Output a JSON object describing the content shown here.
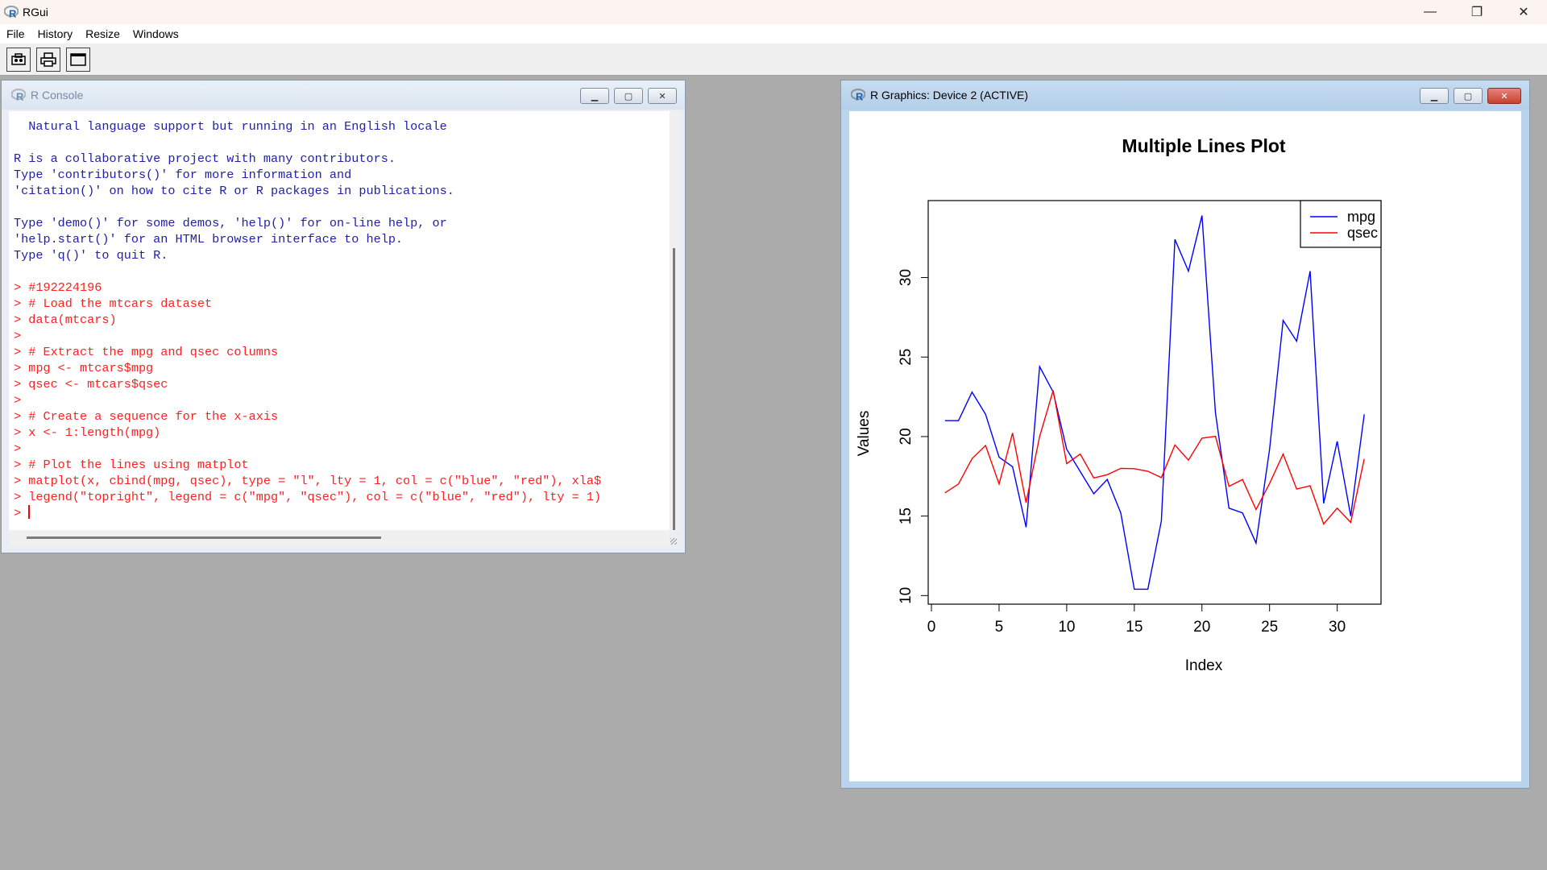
{
  "app": {
    "title": "RGui",
    "controls": {
      "minimize": "—",
      "restore": "❐",
      "close": "✕"
    }
  },
  "menu": {
    "items": [
      "File",
      "History",
      "Resize",
      "Windows"
    ]
  },
  "toolbar": {
    "buttons": [
      {
        "icon": "copy-icon"
      },
      {
        "icon": "print-icon"
      },
      {
        "icon": "window-icon"
      }
    ]
  },
  "console": {
    "title": "R Console",
    "lines": [
      {
        "type": "out",
        "text": "  Natural language support but running in an English locale"
      },
      {
        "type": "out",
        "text": ""
      },
      {
        "type": "out",
        "text": "R is a collaborative project with many contributors."
      },
      {
        "type": "out",
        "text": "Type 'contributors()' for more information and"
      },
      {
        "type": "out",
        "text": "'citation()' on how to cite R or R packages in publications."
      },
      {
        "type": "out",
        "text": ""
      },
      {
        "type": "out",
        "text": "Type 'demo()' for some demos, 'help()' for on-line help, or"
      },
      {
        "type": "out",
        "text": "'help.start()' for an HTML browser interface to help."
      },
      {
        "type": "out",
        "text": "Type 'q()' to quit R."
      },
      {
        "type": "out",
        "text": ""
      },
      {
        "type": "in",
        "text": "> #192224196"
      },
      {
        "type": "in",
        "text": "> # Load the mtcars dataset"
      },
      {
        "type": "in",
        "text": "> data(mtcars)"
      },
      {
        "type": "in",
        "text": ">"
      },
      {
        "type": "in",
        "text": "> # Extract the mpg and qsec columns"
      },
      {
        "type": "in",
        "text": "> mpg <- mtcars$mpg"
      },
      {
        "type": "in",
        "text": "> qsec <- mtcars$qsec"
      },
      {
        "type": "in",
        "text": ">"
      },
      {
        "type": "in",
        "text": "> # Create a sequence for the x-axis"
      },
      {
        "type": "in",
        "text": "> x <- 1:length(mpg)"
      },
      {
        "type": "in",
        "text": ">"
      },
      {
        "type": "in",
        "text": "> # Plot the lines using matplot"
      },
      {
        "type": "in",
        "text": "> matplot(x, cbind(mpg, qsec), type = \"l\", lty = 1, col = c(\"blue\", \"red\"), xla$"
      },
      {
        "type": "in",
        "text": "> legend(\"topright\", legend = c(\"mpg\", \"qsec\"), col = c(\"blue\", \"red\"), lty = 1)"
      }
    ],
    "prompt": "> "
  },
  "graphics": {
    "title": "R Graphics: Device 2 (ACTIVE)"
  },
  "chart_data": {
    "type": "line",
    "title": "Multiple Lines Plot",
    "xlabel": "Index",
    "ylabel": "Values",
    "xlim": [
      1,
      32
    ],
    "ylim": [
      10.4,
      33.9
    ],
    "xticks": [
      0,
      5,
      10,
      15,
      20,
      25,
      30
    ],
    "yticks": [
      10,
      15,
      20,
      25,
      30
    ],
    "grid": false,
    "legend_position": "top-right",
    "x": [
      1,
      2,
      3,
      4,
      5,
      6,
      7,
      8,
      9,
      10,
      11,
      12,
      13,
      14,
      15,
      16,
      17,
      18,
      19,
      20,
      21,
      22,
      23,
      24,
      25,
      26,
      27,
      28,
      29,
      30,
      31,
      32
    ],
    "series": [
      {
        "name": "mpg",
        "color": "#0000ff",
        "values": [
          21.0,
          21.0,
          22.8,
          21.4,
          18.7,
          18.1,
          14.3,
          24.4,
          22.8,
          19.2,
          17.8,
          16.4,
          17.3,
          15.2,
          10.4,
          10.4,
          14.7,
          32.4,
          30.4,
          33.9,
          21.5,
          15.5,
          15.2,
          13.3,
          19.2,
          27.3,
          26.0,
          30.4,
          15.8,
          19.7,
          15.0,
          21.4
        ]
      },
      {
        "name": "qsec",
        "color": "#ff0000",
        "values": [
          16.46,
          17.02,
          18.61,
          19.44,
          17.02,
          20.22,
          15.84,
          20.0,
          22.9,
          18.3,
          18.9,
          17.4,
          17.6,
          18.0,
          17.98,
          17.82,
          17.42,
          19.47,
          18.52,
          19.9,
          20.01,
          16.87,
          17.3,
          15.41,
          17.05,
          18.9,
          16.7,
          16.9,
          14.5,
          15.5,
          14.6,
          18.6
        ]
      }
    ]
  }
}
